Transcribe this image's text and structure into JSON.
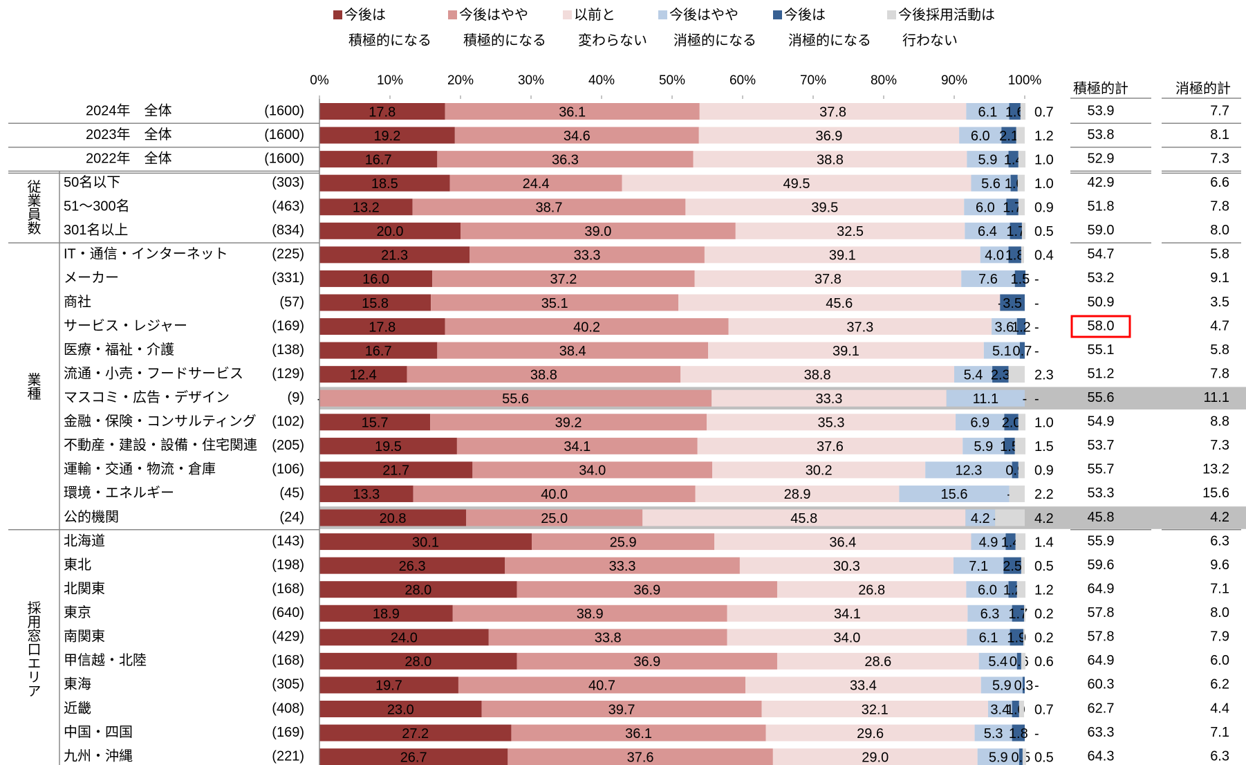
{
  "chart_data": {
    "type": "stacked_bar_horizontal",
    "categories": [
      "2024年　全体",
      "2023年　全体",
      "2022年　全体",
      "50名以下",
      "51～300名",
      "301名以上",
      "IT・通信・インターネット",
      "メーカー",
      "商社",
      "サービス・レジャー",
      "医療・福祉・介護",
      "流通・小売・フードサービス",
      "マスコミ・広告・デザイン",
      "金融・保険・コンサルティング",
      "不動産・建設・設備・住宅関連",
      "運輸・交通・物流・倉庫",
      "環境・エネルギー",
      "公的機関",
      "北海道",
      "東北",
      "北関東",
      "東京",
      "南関東",
      "甲信越・北陸",
      "東海",
      "近畿",
      "中国・四国",
      "九州・沖縄"
    ],
    "category_groups": [
      null,
      null,
      null,
      "従業員数",
      "従業員数",
      "従業員数",
      "業種",
      "業種",
      "業種",
      "業種",
      "業種",
      "業種",
      "業種",
      "業種",
      "業種",
      "業種",
      "業種",
      "業種",
      "採用窓口エリア",
      "採用窓口エリア",
      "採用窓口エリア",
      "採用窓口エリア",
      "採用窓口エリア",
      "採用窓口エリア",
      "採用窓口エリア",
      "採用窓口エリア",
      "採用窓口エリア",
      "採用窓口エリア"
    ],
    "sample_sizes": [
      "(1600)",
      "(1600)",
      "(1600)",
      "(303)",
      "(463)",
      "(834)",
      "(225)",
      "(331)",
      "(57)",
      "(169)",
      "(138)",
      "(129)",
      "(9)",
      "(102)",
      "(205)",
      "(106)",
      "(45)",
      "(24)",
      "(143)",
      "(198)",
      "(168)",
      "(640)",
      "(429)",
      "(168)",
      "(305)",
      "(408)",
      "(169)",
      "(221)"
    ],
    "xlim": [
      0,
      100
    ],
    "xticks": [
      {
        "value": 0,
        "label": "0%"
      },
      {
        "value": 10,
        "label": "10%"
      },
      {
        "value": 20,
        "label": "20%"
      },
      {
        "value": 30,
        "label": "30%"
      },
      {
        "value": 40,
        "label": "40%"
      },
      {
        "value": 50,
        "label": "50%"
      },
      {
        "value": 60,
        "label": "60%"
      },
      {
        "value": 70,
        "label": "70%"
      },
      {
        "value": 80,
        "label": "80%"
      },
      {
        "value": 90,
        "label": "90%"
      },
      {
        "value": 100,
        "label": "100%"
      }
    ],
    "series": [
      {
        "name": "今後は\n積極的になる",
        "color": "#953735",
        "values": [
          17.8,
          19.2,
          16.7,
          18.5,
          13.2,
          20.0,
          21.3,
          16.0,
          15.8,
          17.8,
          16.7,
          12.4,
          null,
          15.7,
          19.5,
          21.7,
          13.3,
          20.8,
          30.1,
          26.3,
          28.0,
          18.9,
          24.0,
          28.0,
          19.7,
          23.0,
          27.2,
          26.7
        ],
        "value_labels": [
          "17.8",
          "19.2",
          "16.7",
          "18.5",
          "13.2",
          "20.0",
          "21.3",
          "16.0",
          "15.8",
          "17.8",
          "16.7",
          "12.4",
          "-",
          "15.7",
          "19.5",
          "21.7",
          "13.3",
          "20.8",
          "30.1",
          "26.3",
          "28.0",
          "18.9",
          "24.0",
          "28.0",
          "19.7",
          "23.0",
          "27.2",
          "26.7"
        ]
      },
      {
        "name": "今後はやや\n積極的になる",
        "color": "#d99694",
        "values": [
          36.1,
          34.6,
          36.3,
          24.4,
          38.7,
          39.0,
          33.3,
          37.2,
          35.1,
          40.2,
          38.4,
          38.8,
          55.6,
          39.2,
          34.1,
          34.0,
          40.0,
          25.0,
          25.9,
          33.3,
          36.9,
          38.9,
          33.8,
          36.9,
          40.7,
          39.7,
          36.1,
          37.6
        ],
        "value_labels": [
          "36.1",
          "34.6",
          "36.3",
          "24.4",
          "38.7",
          "39.0",
          "33.3",
          "37.2",
          "35.1",
          "40.2",
          "38.4",
          "38.8",
          "55.6",
          "39.2",
          "34.1",
          "34.0",
          "40.0",
          "25.0",
          "25.9",
          "33.3",
          "36.9",
          "38.9",
          "33.8",
          "36.9",
          "40.7",
          "39.7",
          "36.1",
          "37.6"
        ]
      },
      {
        "name": "以前と\n変わらない",
        "color": "#f2dcdb",
        "values": [
          37.8,
          36.9,
          38.8,
          49.5,
          39.5,
          32.5,
          39.1,
          37.8,
          45.6,
          37.3,
          39.1,
          38.8,
          33.3,
          35.3,
          37.6,
          30.2,
          28.9,
          45.8,
          36.4,
          30.3,
          26.8,
          34.1,
          34.0,
          28.6,
          33.4,
          32.1,
          29.6,
          29.0
        ],
        "value_labels": [
          "37.8",
          "36.9",
          "38.8",
          "49.5",
          "39.5",
          "32.5",
          "39.1",
          "37.8",
          "45.6",
          "37.3",
          "39.1",
          "38.8",
          "33.3",
          "35.3",
          "37.6",
          "30.2",
          "28.9",
          "45.8",
          "36.4",
          "30.3",
          "26.8",
          "34.1",
          "34.0",
          "28.6",
          "33.4",
          "32.1",
          "29.6",
          "29.0"
        ]
      },
      {
        "name": "今後はやや\n消極的になる",
        "color": "#b9cde5",
        "values": [
          6.1,
          6.0,
          5.9,
          5.6,
          6.0,
          6.4,
          4.0,
          7.6,
          null,
          3.6,
          5.1,
          5.4,
          11.1,
          6.9,
          5.9,
          12.3,
          15.6,
          4.2,
          4.9,
          7.1,
          6.0,
          6.3,
          6.1,
          5.4,
          5.9,
          3.4,
          5.3,
          5.9
        ],
        "value_labels": [
          "6.1",
          "6.0",
          "5.9",
          "5.6",
          "6.0",
          "6.4",
          "4.0",
          "7.6",
          "-",
          "3.6",
          "5.1",
          "5.4",
          "11.1",
          "6.9",
          "5.9",
          "12.3",
          "15.6",
          "4.2",
          "4.9",
          "7.1",
          "6.0",
          "6.3",
          "6.1",
          "5.4",
          "5.9",
          "3.4",
          "5.3",
          "5.9"
        ]
      },
      {
        "name": "今後は\n消極的になる",
        "color": "#376092",
        "values": [
          1.6,
          2.1,
          1.4,
          1.0,
          1.7,
          1.7,
          1.8,
          1.5,
          3.5,
          1.2,
          0.7,
          2.3,
          null,
          2.0,
          1.5,
          0.9,
          null,
          null,
          1.4,
          2.5,
          1.2,
          1.7,
          1.9,
          0.6,
          0.3,
          1.0,
          1.8,
          0.5
        ],
        "value_labels": [
          "1.6",
          "2.1",
          "1.4",
          "1.0",
          "1.7",
          "1.7",
          "1.8",
          "1.5",
          "3.5",
          "1.2",
          "0.7",
          "2.3",
          "-",
          "2.0",
          "1.5",
          "0.9",
          "-",
          "-",
          "1.4",
          "2.5",
          "1.2",
          "1.7",
          "1.9",
          "0.6",
          "0.3",
          "1.0",
          "1.8",
          "0.5"
        ]
      },
      {
        "name": "今後採用活動は\n行わない",
        "color": "#d9d9d9",
        "values": [
          0.7,
          1.2,
          1.0,
          1.0,
          0.9,
          0.5,
          0.4,
          null,
          null,
          null,
          null,
          2.3,
          null,
          1.0,
          1.5,
          0.9,
          2.2,
          4.2,
          1.4,
          0.5,
          1.2,
          0.2,
          0.2,
          0.6,
          null,
          0.7,
          null,
          0.5
        ],
        "value_labels": [
          "0.7",
          "1.2",
          "1.0",
          "1.0",
          "0.9",
          "0.5",
          "0.4",
          "-",
          "-",
          "-",
          "-",
          "2.3",
          "-",
          "1.0",
          "1.5",
          "0.9",
          "2.2",
          "4.2",
          "1.4",
          "0.5",
          "1.2",
          "0.2",
          "0.2",
          "0.6",
          "-",
          "0.7",
          "-",
          "0.5"
        ]
      }
    ],
    "totals": [
      {
        "name": "積極的計",
        "values": [
          53.9,
          53.8,
          52.9,
          42.9,
          51.8,
          59.0,
          54.7,
          53.2,
          50.9,
          58.0,
          55.1,
          51.2,
          55.6,
          54.9,
          53.7,
          55.7,
          53.3,
          45.8,
          55.9,
          59.6,
          64.9,
          57.8,
          57.8,
          64.9,
          60.3,
          62.7,
          63.3,
          64.3
        ],
        "value_labels": [
          "53.9",
          "53.8",
          "52.9",
          "42.9",
          "51.8",
          "59.0",
          "54.7",
          "53.2",
          "50.9",
          "58.0",
          "55.1",
          "51.2",
          "55.6",
          "54.9",
          "53.7",
          "55.7",
          "53.3",
          "45.8",
          "55.9",
          "59.6",
          "64.9",
          "57.8",
          "57.8",
          "64.9",
          "60.3",
          "62.7",
          "63.3",
          "64.3"
        ],
        "boxed_categories": [
          "サービス・レジャー"
        ],
        "box_color": "#ff0000"
      },
      {
        "name": "消極的計",
        "values": [
          7.7,
          8.1,
          7.3,
          6.6,
          7.8,
          8.0,
          5.8,
          9.1,
          3.5,
          4.7,
          5.8,
          7.8,
          11.1,
          8.8,
          7.3,
          13.2,
          15.6,
          4.2,
          6.3,
          9.6,
          7.1,
          8.0,
          7.9,
          6.0,
          6.2,
          4.4,
          7.1,
          6.3
        ],
        "value_labels": [
          "7.7",
          "8.1",
          "7.3",
          "6.6",
          "7.8",
          "8.0",
          "5.8",
          "9.1",
          "3.5",
          "4.7",
          "5.8",
          "7.8",
          "11.1",
          "8.8",
          "7.3",
          "13.2",
          "15.6",
          "4.2",
          "6.3",
          "9.6",
          "7.1",
          "8.0",
          "7.9",
          "6.0",
          "6.2",
          "4.4",
          "7.1",
          "6.3"
        ]
      }
    ],
    "shaded_categories": [
      "マスコミ・広告・デザイン",
      "公的機関"
    ],
    "shade_color": "#bfbfbf"
  }
}
